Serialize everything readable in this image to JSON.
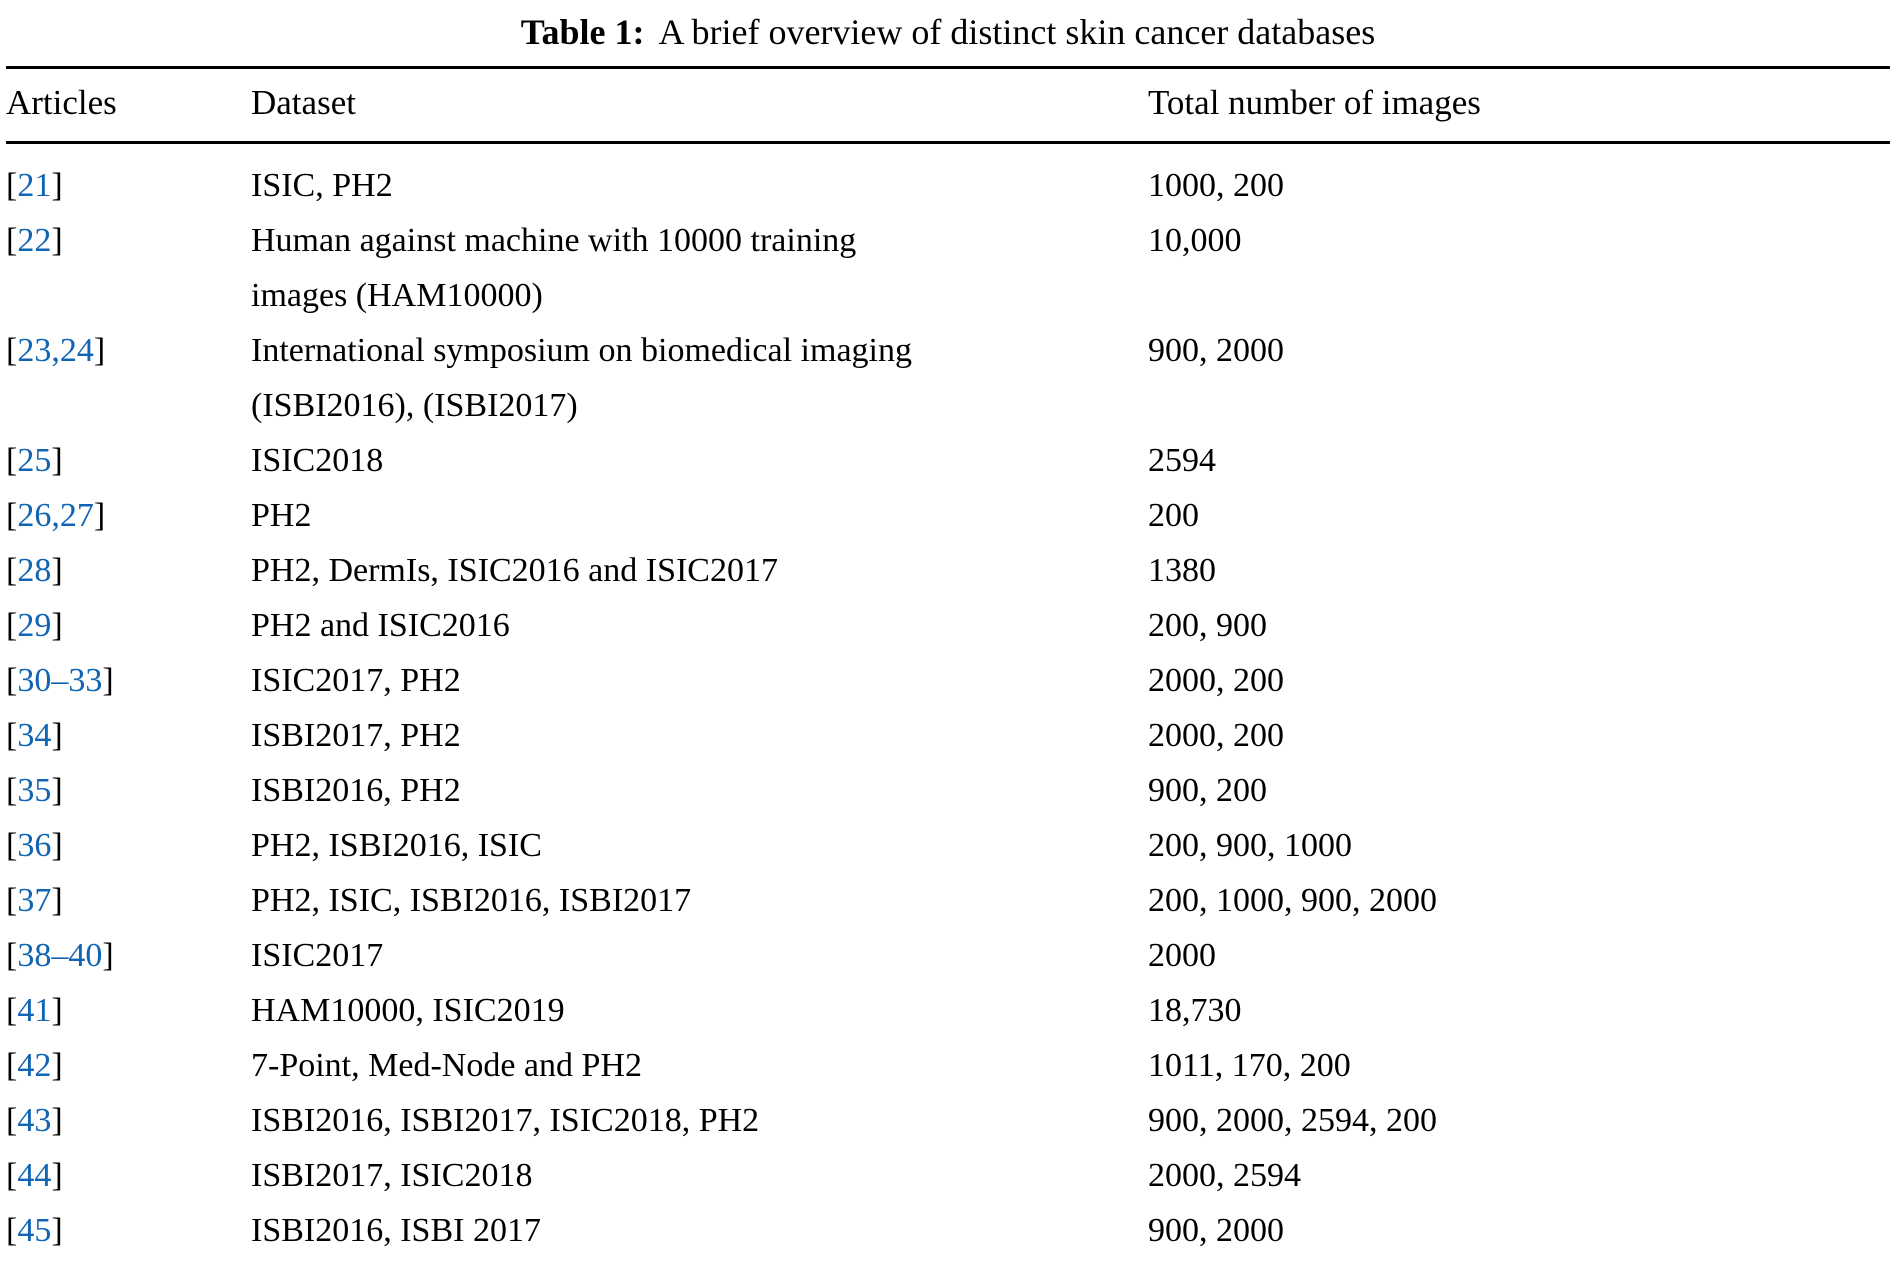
{
  "table_caption": {
    "label": "Table 1:",
    "text": "A brief overview of distinct skin cancer databases"
  },
  "table": {
    "headers": {
      "articles": "Articles",
      "dataset": "Dataset",
      "images": "Total number of images"
    },
    "bracket_open": "[",
    "bracket_close": "]",
    "rows": [
      {
        "citation": "21",
        "dataset": "ISIC, PH2",
        "images": "1000, 200"
      },
      {
        "citation": "22",
        "dataset": "Human against machine with 10000 training\nimages (HAM10000)",
        "images": "10,000"
      },
      {
        "citation": "23,24",
        "dataset": "International symposium on biomedical imaging\n(ISBI2016), (ISBI2017)",
        "images": "900, 2000"
      },
      {
        "citation": "25",
        "dataset": "ISIC2018",
        "images": "2594"
      },
      {
        "citation": "26,27",
        "dataset": "PH2",
        "images": "200"
      },
      {
        "citation": "28",
        "dataset": "PH2, DermIs, ISIC2016 and ISIC2017",
        "images": "1380"
      },
      {
        "citation": "29",
        "dataset": "PH2 and ISIC2016",
        "images": "200, 900"
      },
      {
        "citation": "30–33",
        "dataset": "ISIC2017, PH2",
        "images": "2000, 200"
      },
      {
        "citation": "34",
        "dataset": "ISBI2017, PH2",
        "images": "2000, 200"
      },
      {
        "citation": "35",
        "dataset": "ISBI2016, PH2",
        "images": "900, 200"
      },
      {
        "citation": "36",
        "dataset": "PH2, ISBI2016, ISIC",
        "images": "200, 900, 1000"
      },
      {
        "citation": "37",
        "dataset": "PH2, ISIC, ISBI2016, ISBI2017",
        "images": "200, 1000, 900, 2000"
      },
      {
        "citation": "38–40",
        "dataset": "ISIC2017",
        "images": "2000"
      },
      {
        "citation": "41",
        "dataset": "HAM10000, ISIC2019",
        "images": "18,730"
      },
      {
        "citation": "42",
        "dataset": "7-Point, Med-Node and PH2",
        "images": "1011, 170, 200"
      },
      {
        "citation": "43",
        "dataset": "ISBI2016, ISBI2017, ISIC2018, PH2",
        "images": "900, 2000, 2594, 200"
      },
      {
        "citation": "44",
        "dataset": "ISBI2017, ISIC2018",
        "images": "2000, 2594"
      },
      {
        "citation": "45",
        "dataset": "ISBI2016, ISBI 2017",
        "images": "900, 2000"
      }
    ]
  },
  "colors": {
    "citation_link": "#1064b4",
    "text": "#000000",
    "rule": "#000000"
  }
}
